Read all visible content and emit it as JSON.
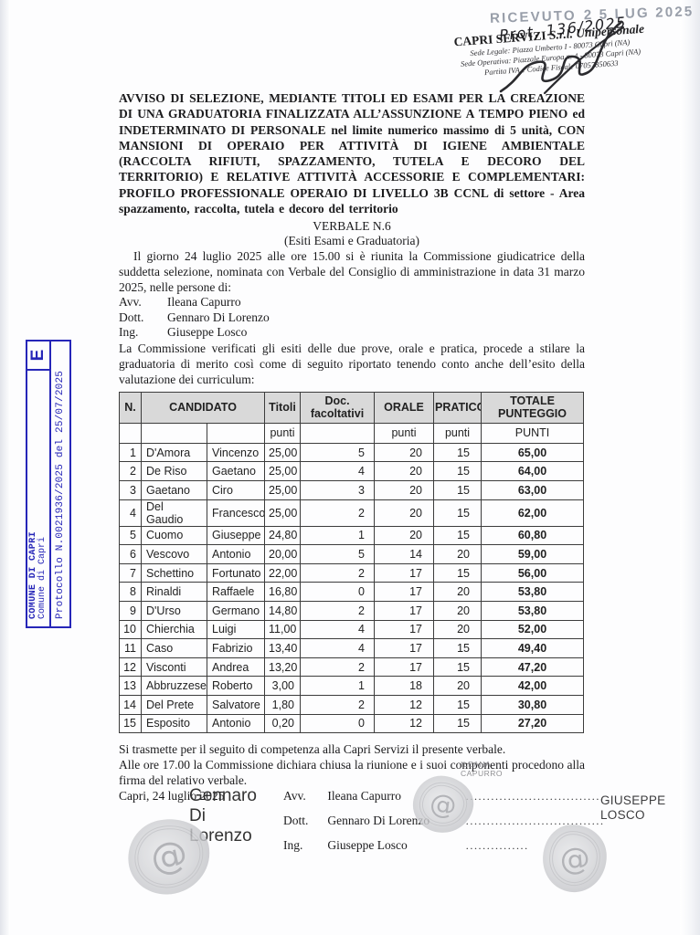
{
  "colors": {
    "stamp_blue": "#2626b8",
    "table_header_gray": "#d9d9d9",
    "received_gray": "#989ea9",
    "ink": "#1b1b1d"
  },
  "protocol_stamp": {
    "entry_letter": "E",
    "org_bold": "COMUNE DI CAPRI",
    "org": "Comune di Capri",
    "protocol": "Protocollo N.0021936/2025 del 25/07/2025"
  },
  "received_stamp": {
    "label": "RICEVUTO",
    "date": "2 5 LUG 2025",
    "handwritten_prot": "Prot. 136/2025"
  },
  "company_header": {
    "name": "CAPRI SERVIZI",
    "suffix": "S.r.l. Unipersonale",
    "address_lines": [
      "Sede Legale: Piazza Umberto I - 80073 Capri (NA)",
      "Sede Operativa: Piazzale Europa n. 4 - 80073 Capri (NA)",
      "Partita IVA e Codice Fiscale 07057850633"
    ]
  },
  "title": "AVVISO DI SELEZIONE, MEDIANTE TITOLI ED ESAMI PER LA CREAZIONE DI UNA GRADUATORIA FINALIZZATA ALL’ASSUNZIONE A TEMPO PIENO ed INDETERMINATO DI PERSONALE nel limite numerico massimo di 5 unità, CON MANSIONI DI OPERAIO PER ATTIVITÀ DI IGIENE AMBIENTALE (RACCOLTA RIFIUTI, SPAZZAMENTO, TUTELA E DECORO DEL TERRITORIO) E RELATIVE ATTIVITÀ ACCESSORIE E COMPLEMENTARI: PROFILO PROFESSIONALE OPERAIO DI LIVELLO 3B  CCNL  di settore - Area spazzamento, raccolta, tutela e decoro del territorio",
  "verbale": {
    "number": "VERBALE N.6",
    "subtitle": "(Esiti Esami e Graduatoria)"
  },
  "paragraphs": {
    "intro": "Il giorno 24 luglio 2025 alle ore 15.00 si è riunita la Commissione giudicatrice della suddetta selezione, nominata con Verbale del Consiglio di amministrazione in data 31 marzo 2025, nelle persone di:",
    "commission_note": "La Commissione verificati gli esiti delle due prove, orale e pratica, procede a stilare la graduatoria di merito così come di seguito riportato tenendo conto anche dell’esito della valutazione dei curriculum:",
    "transmission": "Si trasmette per il seguito di competenza alla Capri Servizi il presente verbale.",
    "closing": "Alle ore 17.00 la Commissione dichiara chiusa la riunione e i suoi componenti procedono alla firma del relativo verbale.",
    "place_date": "Capri, 24 luglio 2025"
  },
  "commission": [
    {
      "title": "Avv.",
      "name": "Ileana Capurro"
    },
    {
      "title": "Dott.",
      "name": "Gennaro Di Lorenzo"
    },
    {
      "title": "Ing.",
      "name": "Giuseppe Losco"
    }
  ],
  "table": {
    "headers": {
      "n": "N.",
      "candidato": "CANDIDATO",
      "titoli": "Titoli",
      "doc": "Doc. facoltativi",
      "orale": "ORALE",
      "pratico": "PRATICO",
      "totale": "TOTALE PUNTEGGIO"
    },
    "sub": {
      "titoli": "punti",
      "orale": "punti",
      "pratico": "punti",
      "totale": "PUNTI"
    },
    "rows": [
      {
        "n": "1",
        "cognome": "D'Amora",
        "nome": "Vincenzo",
        "titoli": "25,00",
        "doc": "5",
        "orale": "20",
        "pratico": "15",
        "totale": "65,00"
      },
      {
        "n": "2",
        "cognome": "De Riso",
        "nome": "Gaetano",
        "titoli": "25,00",
        "doc": "4",
        "orale": "20",
        "pratico": "15",
        "totale": "64,00"
      },
      {
        "n": "3",
        "cognome": "Gaetano",
        "nome": "Ciro",
        "titoli": "25,00",
        "doc": "3",
        "orale": "20",
        "pratico": "15",
        "totale": "63,00"
      },
      {
        "n": "4",
        "cognome": "Del Gaudio",
        "nome": "Francesco",
        "titoli": "25,00",
        "doc": "2",
        "orale": "20",
        "pratico": "15",
        "totale": "62,00"
      },
      {
        "n": "5",
        "cognome": "Cuomo",
        "nome": "Giuseppe",
        "titoli": "24,80",
        "doc": "1",
        "orale": "20",
        "pratico": "15",
        "totale": "60,80"
      },
      {
        "n": "6",
        "cognome": "Vescovo",
        "nome": "Antonio",
        "titoli": "20,00",
        "doc": "5",
        "orale": "14",
        "pratico": "20",
        "totale": "59,00"
      },
      {
        "n": "7",
        "cognome": "Schettino",
        "nome": "Fortunato",
        "titoli": "22,00",
        "doc": "2",
        "orale": "17",
        "pratico": "15",
        "totale": "56,00"
      },
      {
        "n": "8",
        "cognome": "Rinaldi",
        "nome": "Raffaele",
        "titoli": "16,80",
        "doc": "0",
        "orale": "17",
        "pratico": "20",
        "totale": "53,80"
      },
      {
        "n": "9",
        "cognome": "D'Urso",
        "nome": "Germano",
        "titoli": "14,80",
        "doc": "2",
        "orale": "17",
        "pratico": "20",
        "totale": "53,80"
      },
      {
        "n": "10",
        "cognome": "Chierchia",
        "nome": "Luigi",
        "titoli": "11,00",
        "doc": "4",
        "orale": "17",
        "pratico": "20",
        "totale": "52,00"
      },
      {
        "n": "11",
        "cognome": "Caso",
        "nome": "Fabrizio",
        "titoli": "13,40",
        "doc": "4",
        "orale": "17",
        "pratico": "15",
        "totale": "49,40"
      },
      {
        "n": "12",
        "cognome": "Visconti",
        "nome": "Andrea",
        "titoli": "13,20",
        "doc": "2",
        "orale": "17",
        "pratico": "15",
        "totale": "47,20"
      },
      {
        "n": "13",
        "cognome": "Abbruzzese",
        "nome": "Roberto",
        "titoli": "3,00",
        "doc": "1",
        "orale": "18",
        "pratico": "20",
        "totale": "42,00"
      },
      {
        "n": "14",
        "cognome": "Del Prete",
        "nome": "Salvatore",
        "titoli": "1,80",
        "doc": "2",
        "orale": "12",
        "pratico": "15",
        "totale": "30,80"
      },
      {
        "n": "15",
        "cognome": "Esposito",
        "nome": "Antonio",
        "titoli": "0,20",
        "doc": "0",
        "orale": "12",
        "pratico": "15",
        "totale": "27,20"
      }
    ]
  },
  "signatures": {
    "digital_name_lines": [
      "Gennaro",
      "Di",
      "Lorenzo"
    ],
    "rows": [
      {
        "title": "Avv.",
        "name": "Ileana Capurro",
        "dots": "................................."
      },
      {
        "title": "Dott.",
        "name": "Gennaro Di Lorenzo",
        "dots": "................................."
      },
      {
        "title": "Ing.",
        "name": "Giuseppe Losco",
        "dots": "..............."
      }
    ],
    "ileana_lines": [
      "ILEANA",
      "CAPURRO"
    ],
    "losco_lines": [
      "GIUSEPPE",
      "LOSCO"
    ],
    "seal_glyph": "@"
  }
}
